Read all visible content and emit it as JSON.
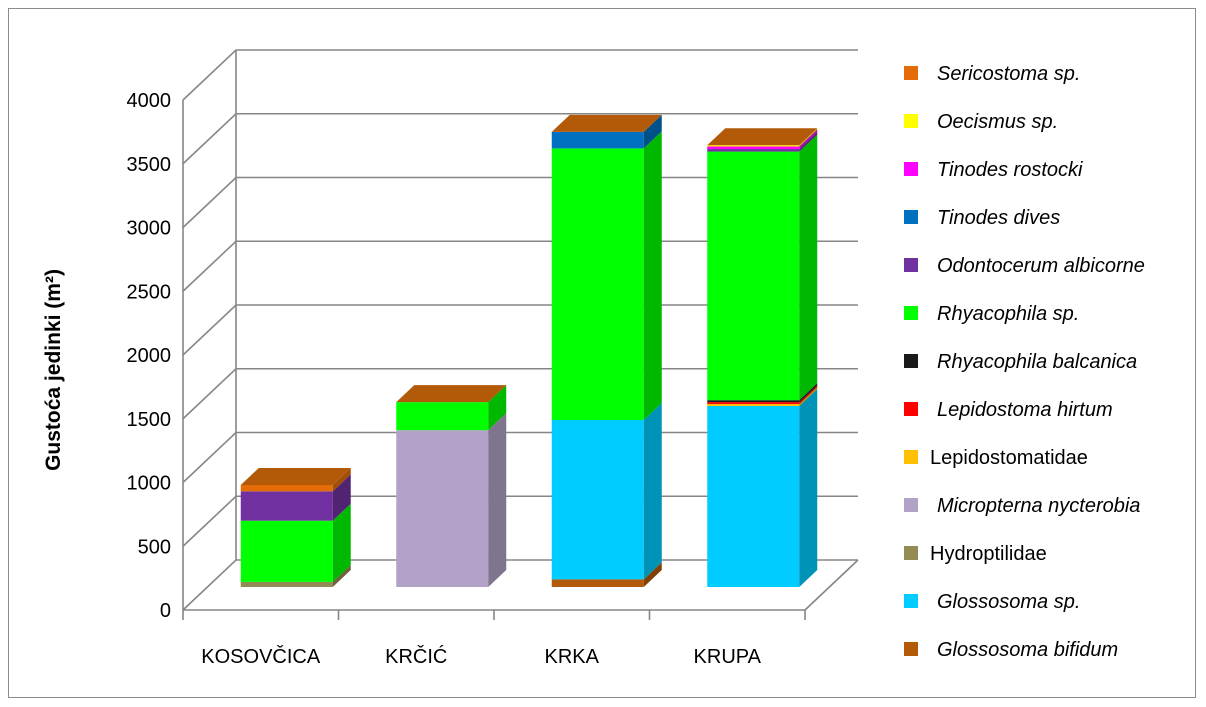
{
  "chart_data": {
    "type": "bar",
    "stacked": true,
    "three_d": true,
    "title": "",
    "xlabel": "",
    "ylabel": "Gustoća jedinki (m²)",
    "ylim": [
      0,
      4000
    ],
    "yticks": [
      "0",
      "500",
      "1000",
      "1500",
      "2000",
      "2500",
      "3000",
      "3500",
      "4000"
    ],
    "grid": true,
    "legend_position": "right",
    "categories": [
      "KOSOVČICA",
      "KRČIĆ",
      "KRKA",
      "KRUPA"
    ],
    "series": [
      {
        "name": "Glossosoma bifidum",
        "italic": true,
        "color": "#b35a09",
        "values": [
          0,
          0,
          60,
          0
        ]
      },
      {
        "name": "Glossosoma sp.",
        "italic": true,
        "color": "#00ccff",
        "values": [
          0,
          0,
          1250,
          1420
        ]
      },
      {
        "name": "Hydroptilidae",
        "italic": false,
        "color": "#948a54",
        "values": [
          40,
          0,
          0,
          0
        ]
      },
      {
        "name": "Micropterna nycterobia",
        "italic": true,
        "color": "#b2a2c7",
        "values": [
          0,
          1230,
          0,
          0
        ]
      },
      {
        "name": "Lepidostomatidae",
        "italic": false,
        "color": "#ffc000",
        "values": [
          0,
          0,
          0,
          15
        ]
      },
      {
        "name": "Lepidostoma hirtum",
        "italic": true,
        "color": "#ff0000",
        "values": [
          0,
          0,
          0,
          15
        ]
      },
      {
        "name": "Rhyacophila balcanica",
        "italic": true,
        "color": "#1a1a1a",
        "values": [
          0,
          0,
          0,
          15
        ]
      },
      {
        "name": "Rhyacophila sp.",
        "italic": true,
        "color": "#00ff00",
        "values": [
          480,
          220,
          2130,
          1950
        ]
      },
      {
        "name": "Odontocerum albicorne",
        "italic": true,
        "color": "#7030a0",
        "values": [
          230,
          0,
          0,
          20
        ]
      },
      {
        "name": "Tinodes dives",
        "italic": true,
        "color": "#0070c0",
        "values": [
          0,
          0,
          130,
          0
        ]
      },
      {
        "name": "Tinodes rostocki",
        "italic": true,
        "color": "#ff00ff",
        "values": [
          0,
          0,
          0,
          20
        ]
      },
      {
        "name": "Oecismus sp.",
        "italic": true,
        "color": "#ffff00",
        "values": [
          0,
          0,
          0,
          10
        ]
      },
      {
        "name": "Sericostoma sp.",
        "italic": true,
        "color": "#e36c09",
        "values": [
          50,
          0,
          0,
          0
        ]
      }
    ]
  }
}
